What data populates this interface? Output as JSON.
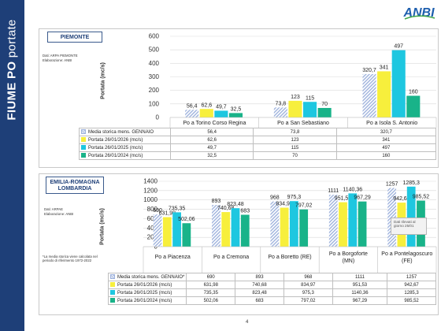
{
  "sidebar_title": {
    "bold": "FIUME PO",
    "rest": " portate"
  },
  "logo": "ANBI",
  "page_number": "4",
  "colors": {
    "sidebar": "#1e3f78",
    "hist": "#b9c7e6",
    "y2026": "#f7ef3c",
    "y2025": "#1ec7e0",
    "y2024": "#19b389"
  },
  "charts": [
    {
      "region": "PIEMONTE",
      "source": "Dati: ARPA PIEMONTE",
      "elab": "Elaborazione: ANBI",
      "ylabel": "Portata (mc/s)",
      "table_rows": [
        {
          "label": "Media storica mens. GENNAIO",
          "values": [
            "56,4",
            "73,8",
            "320,7"
          ]
        },
        {
          "label": "Portata 26/01/2026 (mc/s)",
          "values": [
            "62,6",
            "123",
            "341"
          ]
        },
        {
          "label": "Portata 26/01/2025 (mc/s)",
          "values": [
            "49,7",
            "115",
            "497"
          ]
        },
        {
          "label": "Portata 26/01/2024 (mc/s)",
          "values": [
            "32,5",
            "70",
            "160"
          ]
        }
      ]
    },
    {
      "region": "EMILIA-ROMAGNA LOMBARDIA",
      "source": "Dati: ARPAE",
      "elab": "Elaborazione: ANBI",
      "ylabel": "Portata (mc/s)",
      "footnote": "*La media storica viene calcolata nel periodo di riferimento 1972-2022",
      "callout": "Dati rilevati al giorno 25/01",
      "table_rows": [
        {
          "label": "Media storica mens. GENNAIO*",
          "values": [
            "690",
            "893",
            "968",
            "1111",
            "1257"
          ]
        },
        {
          "label": "Portata 26/01/2026 (mc/s)",
          "values": [
            "631,98",
            "740,68",
            "834,97",
            "951,53",
            "942,67"
          ]
        },
        {
          "label": "Portata 26/01/2025 (mc/s)",
          "values": [
            "735,35",
            "823,48",
            "975,3",
            "1140,36",
            "1285,3"
          ]
        },
        {
          "label": "Portata 26/01/2024 (mc/s)",
          "values": [
            "502,06",
            "683",
            "797,02",
            "967,29",
            "985,52"
          ]
        }
      ]
    }
  ],
  "chart_data": [
    {
      "type": "bar",
      "categories": [
        "Po a Torino Corso Regina",
        "Po a San Sebastiano",
        "Po a Isola S. Antonio"
      ],
      "ylim": [
        0,
        600
      ],
      "yticks": [
        0,
        100,
        200,
        300,
        400,
        500,
        600
      ],
      "series": [
        {
          "name": "Media storica mens. GENNAIO",
          "values": [
            56.4,
            73.8,
            320.7
          ],
          "labels": [
            "56,4",
            "73,8",
            "320,7"
          ]
        },
        {
          "name": "Portata 26/01/2026 (mc/s)",
          "values": [
            62.6,
            123,
            341
          ],
          "labels": [
            "62,6",
            "123",
            "341"
          ]
        },
        {
          "name": "Portata 26/01/2025 (mc/s)",
          "values": [
            49.7,
            115,
            497
          ],
          "labels": [
            "49,7",
            "115",
            "497"
          ]
        },
        {
          "name": "Portata 26/01/2024 (mc/s)",
          "values": [
            32.5,
            70,
            160
          ],
          "labels": [
            "32,5",
            "70",
            "160"
          ]
        }
      ],
      "ylabel": "Portata (mc/s)",
      "grid": true
    },
    {
      "type": "bar",
      "categories": [
        "Po a Piacenza",
        "Po a Cremona",
        "Po a Boretto (RE)",
        "Po a Borgoforte (MN)",
        "Po a Pontelagoscuro (FE)"
      ],
      "ylim": [
        0,
        1400
      ],
      "yticks": [
        0,
        200,
        400,
        600,
        800,
        1000,
        1200,
        1400
      ],
      "series": [
        {
          "name": "Media storica mens. GENNAIO*",
          "values": [
            690,
            893,
            968,
            1111,
            1257
          ],
          "labels": [
            "690",
            "893",
            "968",
            "1111",
            "1257"
          ]
        },
        {
          "name": "Portata 26/01/2026 (mc/s)",
          "values": [
            631.98,
            740.68,
            834.97,
            951.53,
            942.67
          ],
          "labels": [
            "631,98",
            "740,68",
            "834,97",
            "951,53",
            "942,67"
          ]
        },
        {
          "name": "Portata 26/01/2025 (mc/s)",
          "values": [
            735.35,
            823.48,
            975.3,
            1140.36,
            1285.3
          ],
          "labels": [
            "735,35",
            "823,48",
            "975,3",
            "1140,36",
            "1285,3"
          ]
        },
        {
          "name": "Portata 26/01/2024 (mc/s)",
          "values": [
            502.06,
            683,
            797.02,
            967.29,
            985.52
          ],
          "labels": [
            "502,06",
            "683",
            "797,02",
            "967,29",
            "985,52"
          ]
        }
      ],
      "ylabel": "Portata (mc/s)",
      "grid": true
    }
  ]
}
